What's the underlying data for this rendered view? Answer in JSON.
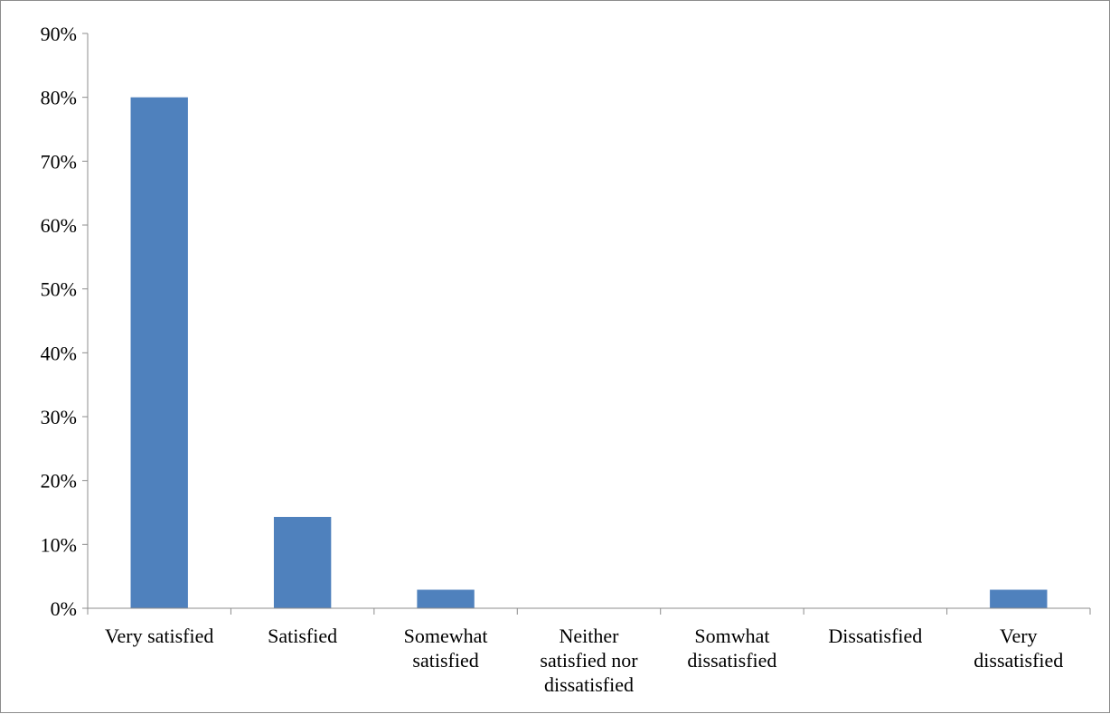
{
  "chart_data": {
    "type": "bar",
    "title": "",
    "xlabel": "",
    "ylabel": "",
    "categories": [
      "Very satisfied",
      "Satisfied",
      "Somewhat satisfied",
      "Neither satisfied nor dissatisfied",
      "Somwhat dissatisfied",
      "Dissatisfied",
      "Very dissatisfied"
    ],
    "category_lines": [
      [
        "Very satisfied"
      ],
      [
        "Satisfied"
      ],
      [
        "Somewhat",
        "satisfied"
      ],
      [
        "Neither",
        "satisfied nor",
        "dissatisfied"
      ],
      [
        "Somwhat",
        "dissatisfied"
      ],
      [
        "Dissatisfied"
      ],
      [
        "Very",
        "dissatisfied"
      ]
    ],
    "values": [
      80,
      14.3,
      2.9,
      0,
      0,
      0,
      2.9
    ],
    "ylim": [
      0,
      90
    ],
    "yticks": [
      0,
      10,
      20,
      30,
      40,
      50,
      60,
      70,
      80,
      90
    ],
    "ytick_labels": [
      "0%",
      "10%",
      "20%",
      "30%",
      "40%",
      "50%",
      "60%",
      "70%",
      "80%",
      "90%"
    ],
    "grid": false,
    "legend": "none",
    "bar_color": "#4f81bd"
  }
}
